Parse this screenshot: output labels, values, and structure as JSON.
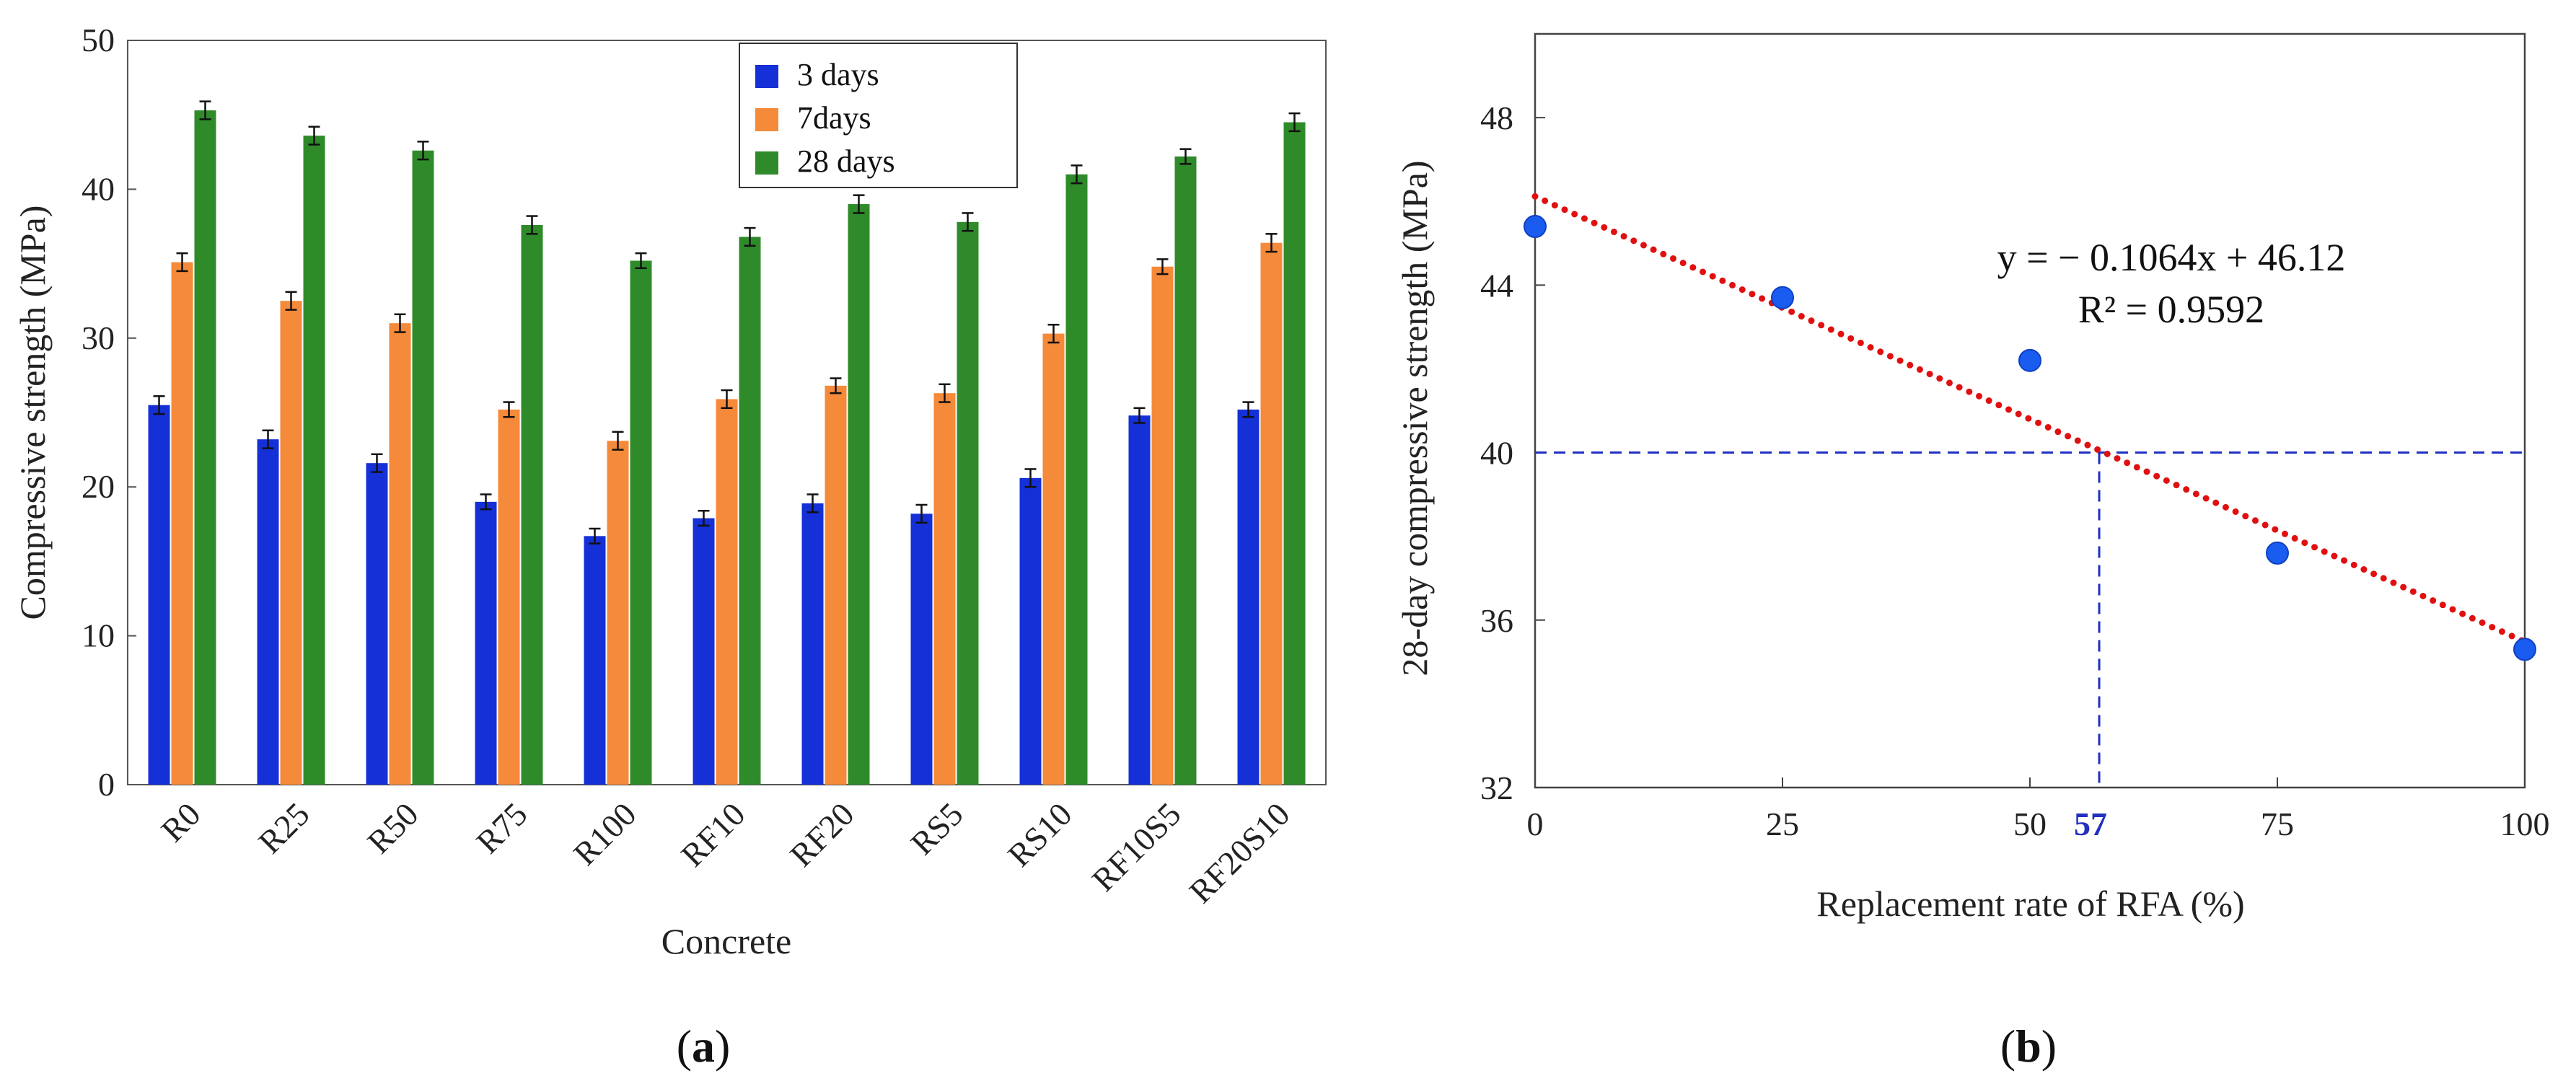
{
  "chart_data": [
    {
      "panel": "(a)",
      "panel_parts": [
        "(",
        "a",
        ")"
      ],
      "type": "bar",
      "xlabel": "Concrete",
      "ylabel": "Compressive strength (MPa)",
      "ylim": [
        0,
        50
      ],
      "yticks": [
        0,
        10,
        20,
        30,
        40,
        50
      ],
      "categories": [
        "R0",
        "R25",
        "R50",
        "R75",
        "R100",
        "RF10",
        "RF20",
        "RS5",
        "RS10",
        "RF10S5",
        "RF20S10"
      ],
      "legend_position": "top-center",
      "series": [
        {
          "name": "3 days",
          "color": "#1430d6",
          "values": [
            25.5,
            23.2,
            21.6,
            19.0,
            16.7,
            17.9,
            18.9,
            18.2,
            20.6,
            24.8,
            25.2
          ],
          "errors": [
            0.6,
            0.6,
            0.6,
            0.5,
            0.5,
            0.5,
            0.6,
            0.6,
            0.6,
            0.5,
            0.5
          ]
        },
        {
          "name": "7days",
          "color": "#f58a3a",
          "values": [
            35.1,
            32.5,
            31.0,
            25.2,
            23.1,
            25.9,
            26.8,
            26.3,
            30.3,
            34.8,
            36.4
          ],
          "errors": [
            0.6,
            0.6,
            0.6,
            0.5,
            0.6,
            0.6,
            0.5,
            0.6,
            0.6,
            0.5,
            0.6
          ]
        },
        {
          "name": "28 days",
          "color": "#2f8b2a",
          "values": [
            45.3,
            43.6,
            42.6,
            37.6,
            35.2,
            36.8,
            39.0,
            37.8,
            41.0,
            42.2,
            44.5
          ],
          "errors": [
            0.6,
            0.6,
            0.6,
            0.6,
            0.5,
            0.6,
            0.6,
            0.6,
            0.6,
            0.5,
            0.6
          ]
        }
      ]
    },
    {
      "panel": "(b)",
      "panel_parts": [
        "(",
        "b",
        ")"
      ],
      "type": "scatter",
      "xlabel": "Replacement rate of RFA (%)",
      "ylabel": "28-day compressive strength (MPa)",
      "xlim": [
        0,
        100
      ],
      "ylim": [
        32,
        50
      ],
      "xticks": [
        0,
        25,
        50,
        75,
        100
      ],
      "yticks": [
        32,
        36,
        40,
        44,
        48
      ],
      "points": {
        "x": [
          0,
          25,
          50,
          75,
          100
        ],
        "y": [
          45.4,
          43.7,
          42.2,
          37.6,
          35.3
        ],
        "color": "#1a5cf0"
      },
      "trendline": {
        "slope": -0.1064,
        "intercept": 46.12,
        "color": "#e01010",
        "style": "dotted"
      },
      "equation": "y = − 0.1064x + 46.12",
      "r_squared": "R² = 0.9592",
      "reference": {
        "y": 40,
        "x": 57,
        "x_label": "57",
        "color": "#2030c0",
        "style": "dashed"
      }
    }
  ]
}
